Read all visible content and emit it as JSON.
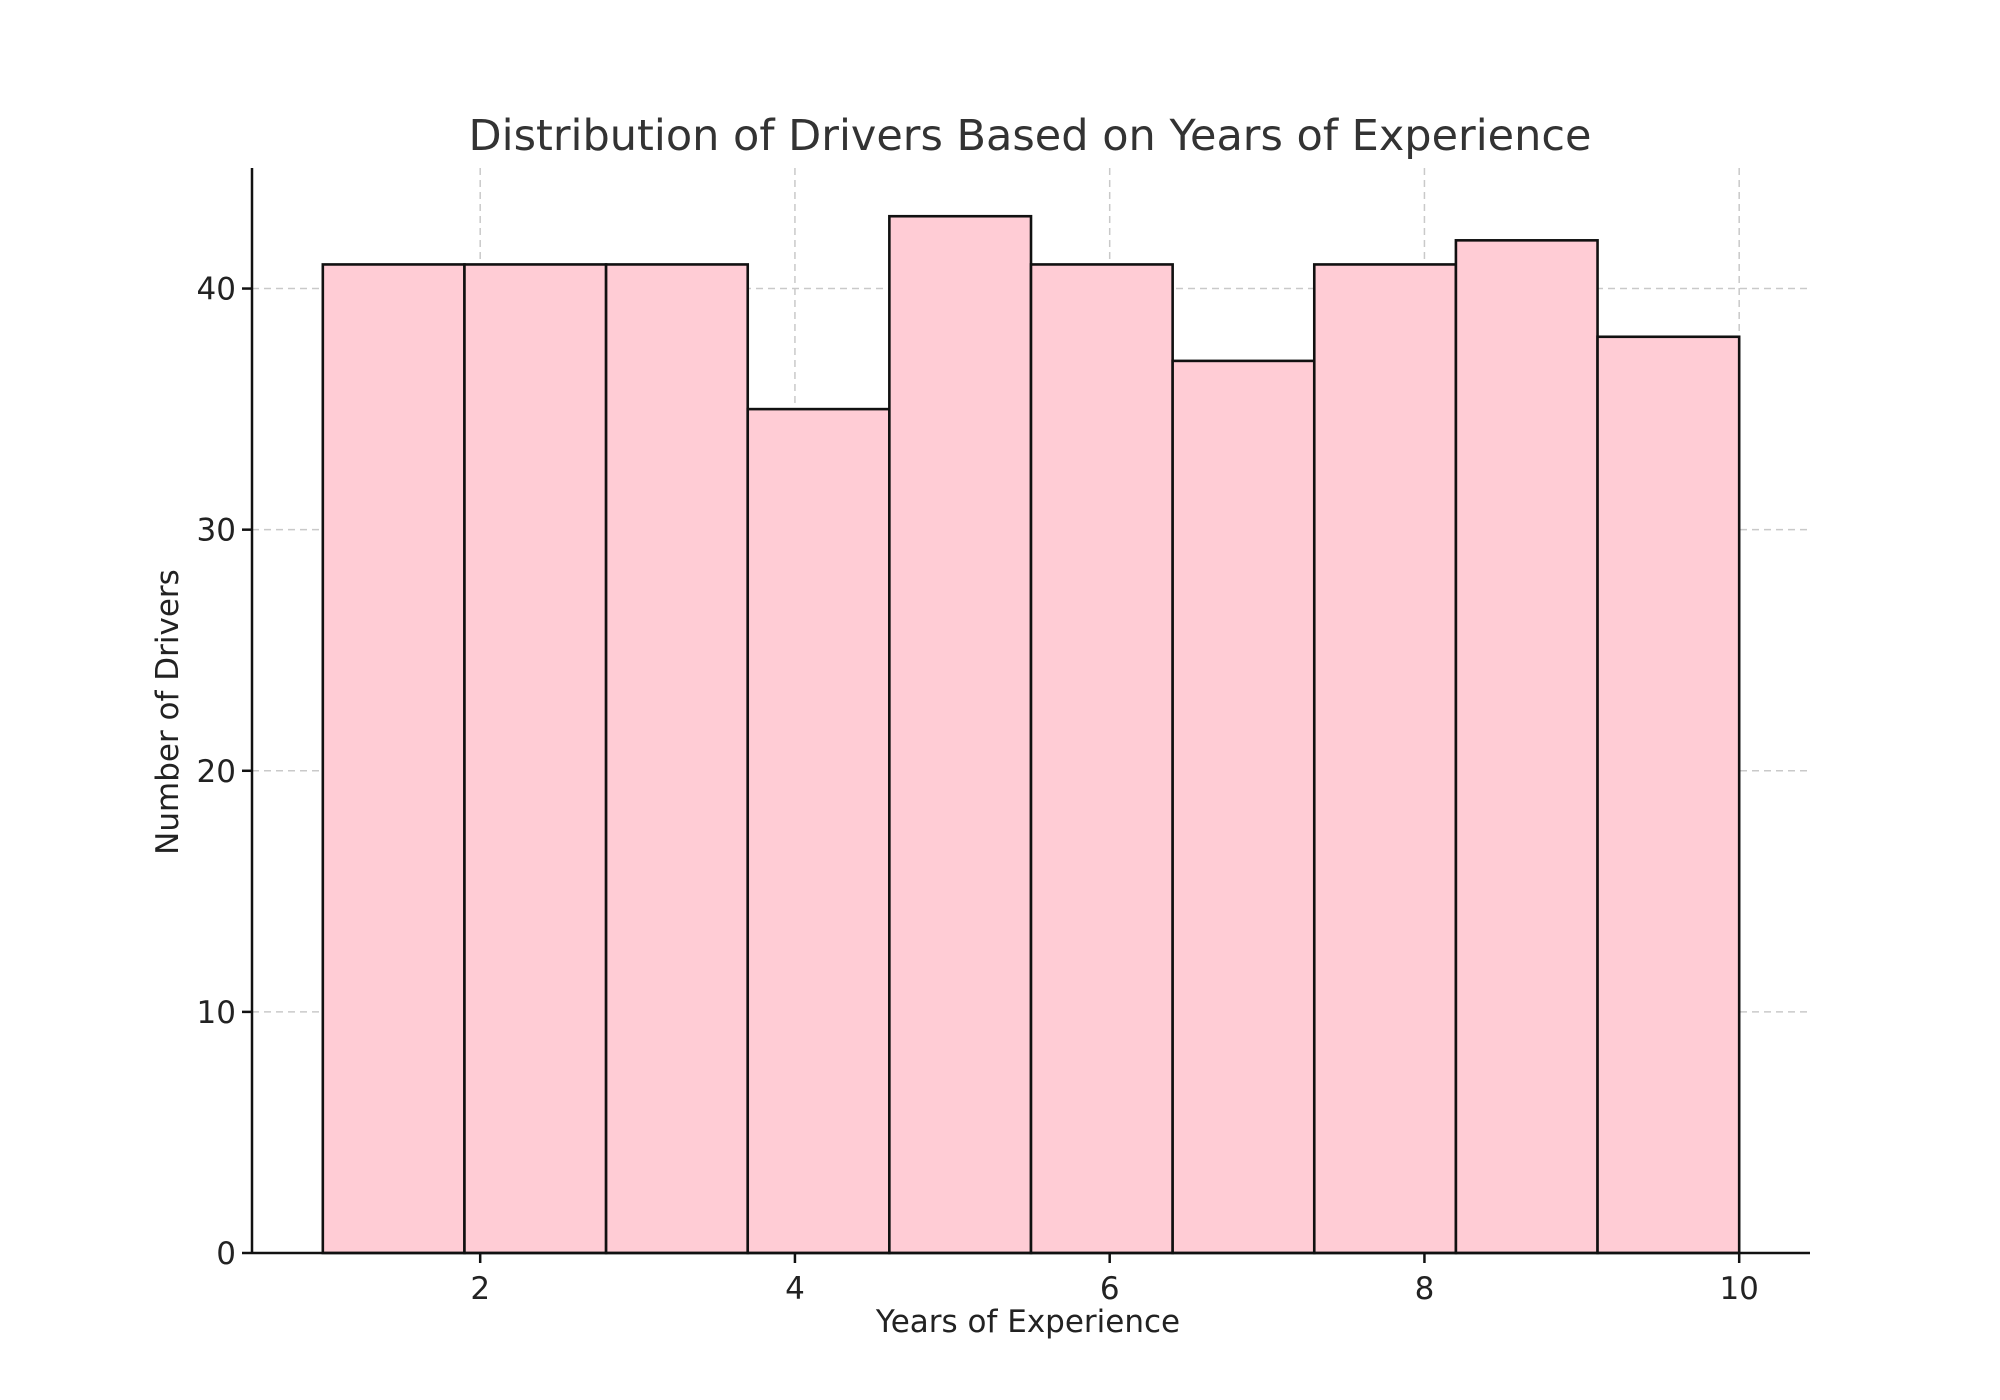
{
  "chart_data": {
    "type": "bar",
    "subtype": "histogram",
    "title": "Distribution of Drivers Based on Years of Experience",
    "xlabel": "Years of Experience",
    "ylabel": "Number of Drivers",
    "xlim": [
      0.55,
      10.45
    ],
    "ylim": [
      0,
      45
    ],
    "x_ticks": [
      2,
      4,
      6,
      8,
      10
    ],
    "y_ticks": [
      0,
      10,
      20,
      30,
      40
    ],
    "bin_edges": [
      1.0,
      1.9,
      2.8,
      3.7,
      4.6,
      5.5,
      6.4,
      7.3,
      8.2,
      9.1,
      10.0
    ],
    "values": [
      41,
      41,
      41,
      35,
      43,
      41,
      37,
      41,
      42,
      38
    ],
    "grid": true,
    "colors": {
      "bar_fill": "#ffccd5",
      "bar_edge": "#111111",
      "grid": "#c9c9c9"
    }
  }
}
